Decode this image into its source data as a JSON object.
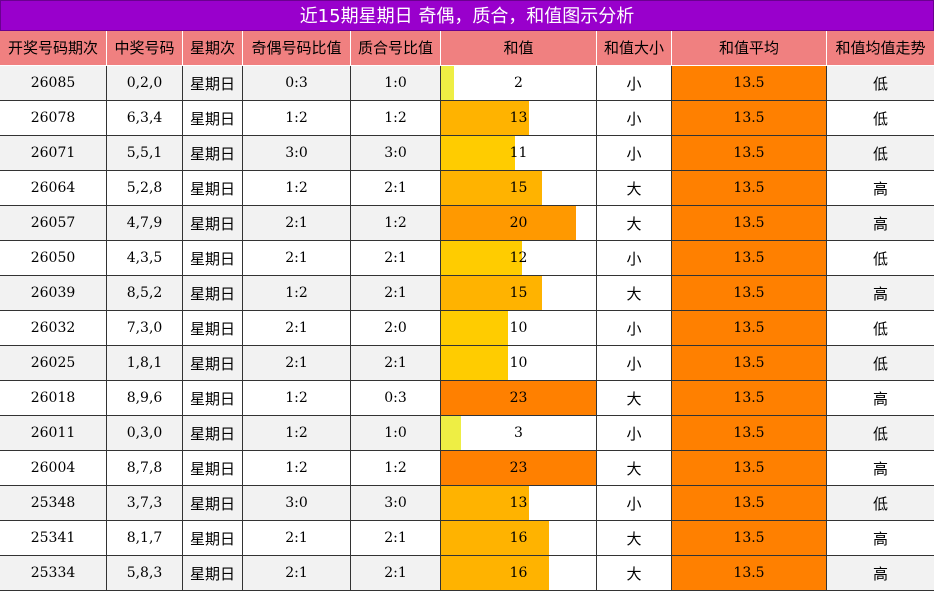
{
  "title": "近15期星期日 奇偶，质合，和值图示分析",
  "columns": [
    "开奖号码期次",
    "中奖号码",
    "星期次",
    "奇偶号码比值",
    "质合号比值",
    "和值",
    "和值大小",
    "和值平均",
    "和值均值走势"
  ],
  "colors": {
    "title_bg": "#9900cc",
    "header_bg": "#f08080",
    "stripe_bg": "#f2f2f2",
    "avg_bg": "#ff8000",
    "bar_yellow": "#ffcc00",
    "bar_amber": "#ffb300",
    "bar_orange": "#ff8000",
    "bar_lime": "#eeee44"
  },
  "chart_data": {
    "type": "table",
    "title": "近15期星期日 奇偶，质合，和值图示分析",
    "sum_scale_max": 23,
    "rows": [
      {
        "issue": "26085",
        "numbers": "0,2,0",
        "weekday": "星期日",
        "odd_even": "0:3",
        "prime_composite": "1:0",
        "sum": 2,
        "size": "小",
        "average": "13.5",
        "trend": "低",
        "bar_color": "#eeee44"
      },
      {
        "issue": "26078",
        "numbers": "6,3,4",
        "weekday": "星期日",
        "odd_even": "1:2",
        "prime_composite": "1:2",
        "sum": 13,
        "size": "小",
        "average": "13.5",
        "trend": "低",
        "bar_color": "#ffb300"
      },
      {
        "issue": "26071",
        "numbers": "5,5,1",
        "weekday": "星期日",
        "odd_even": "3:0",
        "prime_composite": "3:0",
        "sum": 11,
        "size": "小",
        "average": "13.5",
        "trend": "低",
        "bar_color": "#ffcc00"
      },
      {
        "issue": "26064",
        "numbers": "5,2,8",
        "weekday": "星期日",
        "odd_even": "1:2",
        "prime_composite": "2:1",
        "sum": 15,
        "size": "大",
        "average": "13.5",
        "trend": "高",
        "bar_color": "#ffb300"
      },
      {
        "issue": "26057",
        "numbers": "4,7,9",
        "weekday": "星期日",
        "odd_even": "2:1",
        "prime_composite": "1:2",
        "sum": 20,
        "size": "大",
        "average": "13.5",
        "trend": "高",
        "bar_color": "#ff9900"
      },
      {
        "issue": "26050",
        "numbers": "4,3,5",
        "weekday": "星期日",
        "odd_even": "2:1",
        "prime_composite": "2:1",
        "sum": 12,
        "size": "小",
        "average": "13.5",
        "trend": "低",
        "bar_color": "#ffcc00"
      },
      {
        "issue": "26039",
        "numbers": "8,5,2",
        "weekday": "星期日",
        "odd_even": "1:2",
        "prime_composite": "2:1",
        "sum": 15,
        "size": "大",
        "average": "13.5",
        "trend": "高",
        "bar_color": "#ffb300"
      },
      {
        "issue": "26032",
        "numbers": "7,3,0",
        "weekday": "星期日",
        "odd_even": "2:1",
        "prime_composite": "2:0",
        "sum": 10,
        "size": "小",
        "average": "13.5",
        "trend": "低",
        "bar_color": "#ffcc00"
      },
      {
        "issue": "26025",
        "numbers": "1,8,1",
        "weekday": "星期日",
        "odd_even": "2:1",
        "prime_composite": "2:1",
        "sum": 10,
        "size": "小",
        "average": "13.5",
        "trend": "低",
        "bar_color": "#ffcc00"
      },
      {
        "issue": "26018",
        "numbers": "8,9,6",
        "weekday": "星期日",
        "odd_even": "1:2",
        "prime_composite": "0:3",
        "sum": 23,
        "size": "大",
        "average": "13.5",
        "trend": "高",
        "bar_color": "#ff8000"
      },
      {
        "issue": "26011",
        "numbers": "0,3,0",
        "weekday": "星期日",
        "odd_even": "1:2",
        "prime_composite": "1:0",
        "sum": 3,
        "size": "小",
        "average": "13.5",
        "trend": "低",
        "bar_color": "#eeee44"
      },
      {
        "issue": "26004",
        "numbers": "8,7,8",
        "weekday": "星期日",
        "odd_even": "1:2",
        "prime_composite": "1:2",
        "sum": 23,
        "size": "大",
        "average": "13.5",
        "trend": "高",
        "bar_color": "#ff8000"
      },
      {
        "issue": "25348",
        "numbers": "3,7,3",
        "weekday": "星期日",
        "odd_even": "3:0",
        "prime_composite": "3:0",
        "sum": 13,
        "size": "小",
        "average": "13.5",
        "trend": "低",
        "bar_color": "#ffb300"
      },
      {
        "issue": "25341",
        "numbers": "8,1,7",
        "weekday": "星期日",
        "odd_even": "2:1",
        "prime_composite": "2:1",
        "sum": 16,
        "size": "大",
        "average": "13.5",
        "trend": "高",
        "bar_color": "#ffb300"
      },
      {
        "issue": "25334",
        "numbers": "5,8,3",
        "weekday": "星期日",
        "odd_even": "2:1",
        "prime_composite": "2:1",
        "sum": 16,
        "size": "大",
        "average": "13.5",
        "trend": "高",
        "bar_color": "#ffb300"
      }
    ]
  }
}
